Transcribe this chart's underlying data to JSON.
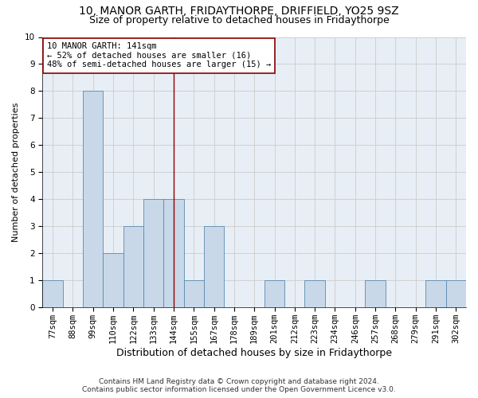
{
  "title1": "10, MANOR GARTH, FRIDAYTHORPE, DRIFFIELD, YO25 9SZ",
  "title2": "Size of property relative to detached houses in Fridaythorpe",
  "xlabel": "Distribution of detached houses by size in Fridaythorpe",
  "ylabel": "Number of detached properties",
  "categories": [
    "77sqm",
    "88sqm",
    "99sqm",
    "110sqm",
    "122sqm",
    "133sqm",
    "144sqm",
    "155sqm",
    "167sqm",
    "178sqm",
    "189sqm",
    "201sqm",
    "212sqm",
    "223sqm",
    "234sqm",
    "246sqm",
    "257sqm",
    "268sqm",
    "279sqm",
    "291sqm",
    "302sqm"
  ],
  "values": [
    1,
    0,
    8,
    2,
    3,
    4,
    4,
    1,
    3,
    0,
    0,
    1,
    0,
    1,
    0,
    0,
    1,
    0,
    0,
    1,
    1
  ],
  "bar_color": "#c8d8e8",
  "bar_edge_color": "#5a8ab0",
  "vline_x_index": 6,
  "vline_color": "#8b0000",
  "annotation_line1": "10 MANOR GARTH: 141sqm",
  "annotation_line2": "← 52% of detached houses are smaller (16)",
  "annotation_line3": "48% of semi-detached houses are larger (15) →",
  "annotation_box_facecolor": "#ffffff",
  "annotation_box_edgecolor": "#8b0000",
  "ylim": [
    0,
    10
  ],
  "yticks": [
    0,
    1,
    2,
    3,
    4,
    5,
    6,
    7,
    8,
    9,
    10
  ],
  "grid_color": "#cccccc",
  "bg_color": "#e8eef5",
  "footer_line1": "Contains HM Land Registry data © Crown copyright and database right 2024.",
  "footer_line2": "Contains public sector information licensed under the Open Government Licence v3.0.",
  "title1_fontsize": 10,
  "title2_fontsize": 9,
  "xlabel_fontsize": 9,
  "ylabel_fontsize": 8,
  "tick_fontsize": 7.5,
  "annotation_fontsize": 7.5,
  "footer_fontsize": 6.5
}
